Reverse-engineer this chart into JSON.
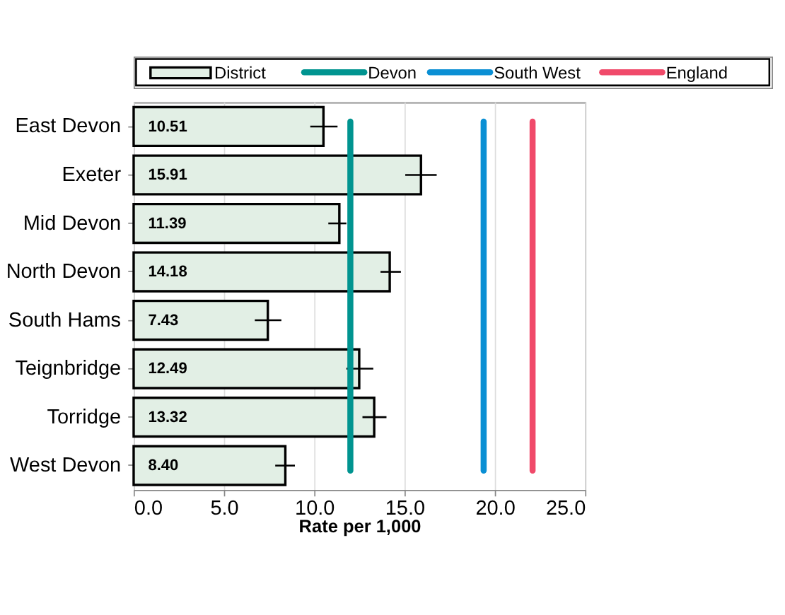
{
  "chart_data": {
    "type": "bar",
    "orientation": "horizontal",
    "xlabel": "Rate per 1,000",
    "categories": [
      "East Devon",
      "Exeter",
      "Mid Devon",
      "North Devon",
      "South Hams",
      "Teignbridge",
      "Torridge",
      "West Devon"
    ],
    "series": [
      {
        "name": "District",
        "color": "#e2efe5",
        "values": [
          10.51,
          15.91,
          11.39,
          14.18,
          7.43,
          12.49,
          13.32,
          8.4
        ],
        "value_labels": [
          "10.51",
          "15.91",
          "11.39",
          "14.18",
          "7.43",
          "12.49",
          "13.32",
          "8.40"
        ],
        "errors": [
          [
            9.78,
            11.29
          ],
          [
            15.04,
            16.78
          ],
          [
            10.78,
            11.78
          ],
          [
            13.67,
            14.8
          ],
          [
            6.71,
            8.18
          ],
          [
            11.78,
            13.27
          ],
          [
            12.67,
            14.0
          ],
          [
            7.84,
            8.93
          ]
        ]
      }
    ],
    "ref_lines": [
      {
        "axis": "x",
        "value": 12.0,
        "label": "Devon",
        "color": "#009490"
      },
      {
        "axis": "x",
        "value": 19.38,
        "label": "South West",
        "color": "#0a8fd4"
      },
      {
        "axis": "x",
        "value": 22.09,
        "label": "England",
        "color": "#f04a6a"
      }
    ],
    "xlim": [
      0,
      25
    ],
    "xticks": [
      {
        "value": 0,
        "label": "0.0"
      },
      {
        "value": 5,
        "label": "5.0"
      },
      {
        "value": 10,
        "label": "10.0"
      },
      {
        "value": 15,
        "label": "15.0"
      },
      {
        "value": 20,
        "label": "20.0"
      },
      {
        "value": 25,
        "label": "25.0"
      }
    ],
    "grid": "x",
    "legend": "top"
  }
}
